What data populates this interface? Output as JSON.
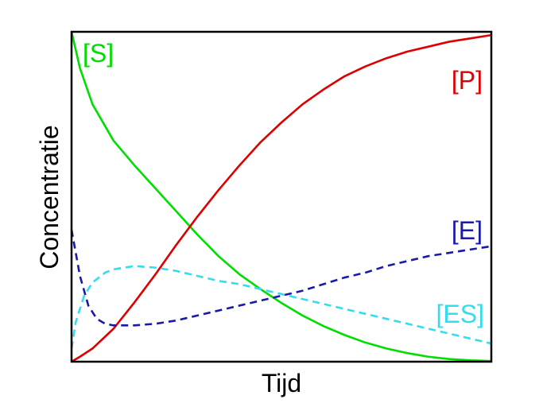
{
  "chart_data": {
    "type": "line",
    "title": "",
    "xlabel": "Tijd",
    "ylabel": "Concentratie",
    "xlim": [
      0,
      1
    ],
    "ylim": [
      0,
      1
    ],
    "grid": false,
    "legend": "inline labels",
    "series": [
      {
        "name": "[S]",
        "color": "#00dd00",
        "dash": "solid",
        "x": [
          0,
          0.02,
          0.05,
          0.1,
          0.15,
          0.2,
          0.25,
          0.3,
          0.35,
          0.4,
          0.45,
          0.5,
          0.55,
          0.6,
          0.65,
          0.7,
          0.75,
          0.8,
          0.85,
          0.9,
          0.95,
          1
        ],
        "y": [
          1.0,
          0.89,
          0.78,
          0.67,
          0.595,
          0.525,
          0.455,
          0.385,
          0.32,
          0.265,
          0.22,
          0.178,
          0.14,
          0.108,
          0.081,
          0.058,
          0.04,
          0.026,
          0.015,
          0.008,
          0.004,
          0.002
        ]
      },
      {
        "name": "[P]",
        "color": "#dd0000",
        "dash": "solid",
        "x": [
          0,
          0.02,
          0.05,
          0.1,
          0.15,
          0.2,
          0.25,
          0.3,
          0.35,
          0.4,
          0.45,
          0.5,
          0.55,
          0.6,
          0.65,
          0.7,
          0.75,
          0.8,
          0.85,
          0.9,
          0.95,
          1
        ],
        "y": [
          0.0,
          0.015,
          0.04,
          0.1,
          0.18,
          0.265,
          0.355,
          0.44,
          0.52,
          0.595,
          0.665,
          0.725,
          0.78,
          0.825,
          0.865,
          0.895,
          0.92,
          0.94,
          0.955,
          0.97,
          0.98,
          0.99
        ]
      },
      {
        "name": "[E]",
        "color": "#1a1aaa",
        "dash": "dashed",
        "x": [
          0,
          0.02,
          0.04,
          0.06,
          0.08,
          0.1,
          0.15,
          0.2,
          0.25,
          0.3,
          0.35,
          0.4,
          0.45,
          0.5,
          0.55,
          0.6,
          0.65,
          0.7,
          0.75,
          0.8,
          0.85,
          0.9,
          0.95,
          1
        ],
        "y": [
          0.4,
          0.26,
          0.17,
          0.13,
          0.115,
          0.11,
          0.11,
          0.115,
          0.125,
          0.14,
          0.155,
          0.17,
          0.185,
          0.2,
          0.215,
          0.235,
          0.255,
          0.27,
          0.29,
          0.305,
          0.32,
          0.33,
          0.34,
          0.35
        ]
      },
      {
        "name": "[ES]",
        "color": "#33ddee",
        "dash": "dashed",
        "x": [
          0,
          0.01,
          0.03,
          0.05,
          0.08,
          0.1,
          0.15,
          0.2,
          0.25,
          0.3,
          0.35,
          0.4,
          0.45,
          0.5,
          0.55,
          0.6,
          0.65,
          0.7,
          0.75,
          0.8,
          0.85,
          0.9,
          0.95,
          1
        ],
        "y": [
          0.04,
          0.12,
          0.2,
          0.24,
          0.27,
          0.28,
          0.29,
          0.285,
          0.275,
          0.26,
          0.245,
          0.235,
          0.22,
          0.205,
          0.19,
          0.175,
          0.16,
          0.145,
          0.13,
          0.115,
          0.1,
          0.085,
          0.07,
          0.055
        ]
      }
    ]
  }
}
